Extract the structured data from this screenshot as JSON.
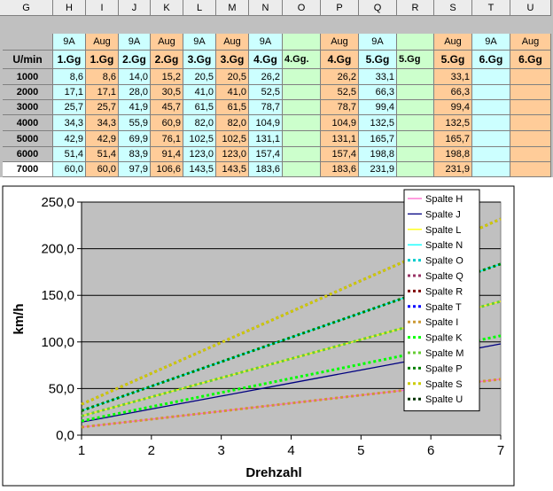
{
  "sheet": {
    "columns": [
      "G",
      "H",
      "I",
      "J",
      "K",
      "L",
      "M",
      "N",
      "O",
      "P",
      "Q",
      "R",
      "S",
      "T",
      "U"
    ],
    "rows": [
      [
        null,
        "9A",
        "Aug",
        "9A",
        "Aug",
        "9A",
        "Aug",
        "9A",
        null,
        "Aug",
        "9A",
        null,
        "Aug",
        "9A",
        "Aug"
      ],
      [
        "U/min",
        "1.Gg",
        "1.Gg",
        "2.Gg",
        "2.Gg",
        "3.Gg",
        "3.Gg",
        "4.Gg",
        "4.Gg.",
        "4.Gg",
        "5.Gg",
        "5.Gg",
        "5.Gg",
        "6.Gg",
        "6.Gg"
      ],
      [
        "1000",
        "8,6",
        "8,6",
        "14,0",
        "15,2",
        "20,5",
        "20,5",
        "26,2",
        null,
        "26,2",
        "33,1",
        null,
        "33,1",
        null,
        null
      ],
      [
        "2000",
        "17,1",
        "17,1",
        "28,0",
        "30,5",
        "41,0",
        "41,0",
        "52,5",
        null,
        "52,5",
        "66,3",
        null,
        "66,3",
        null,
        null
      ],
      [
        "3000",
        "25,7",
        "25,7",
        "41,9",
        "45,7",
        "61,5",
        "61,5",
        "78,7",
        null,
        "78,7",
        "99,4",
        null,
        "99,4",
        null,
        null
      ],
      [
        "4000",
        "34,3",
        "34,3",
        "55,9",
        "60,9",
        "82,0",
        "82,0",
        "104,9",
        null,
        "104,9",
        "132,5",
        null,
        "132,5",
        null,
        null
      ],
      [
        "5000",
        "42,9",
        "42,9",
        "69,9",
        "76,1",
        "102,5",
        "102,5",
        "131,1",
        null,
        "131,1",
        "165,7",
        null,
        "165,7",
        null,
        null
      ],
      [
        "6000",
        "51,4",
        "51,4",
        "83,9",
        "91,4",
        "123,0",
        "123,0",
        "157,4",
        null,
        "157,4",
        "198,8",
        null,
        "198,8",
        null,
        null
      ],
      [
        "7000",
        "60,0",
        "60,0",
        "97,9",
        "106,6",
        "143,5",
        "143,5",
        "183,6",
        null,
        "183,6",
        "231,9",
        null,
        "231,9",
        null,
        null
      ]
    ]
  },
  "chart_data": {
    "type": "line",
    "x_label": "Drehzahl",
    "y_label": "km/h",
    "grid": true,
    "x": [
      1,
      2,
      3,
      4,
      5,
      6,
      7
    ],
    "xlim": [
      1,
      7
    ],
    "xticks": [
      1,
      2,
      3,
      4,
      5,
      6,
      7
    ],
    "ylim": [
      0,
      250
    ],
    "yticks": [
      {
        "value": 0,
        "label": "0,0"
      },
      {
        "value": 50,
        "label": "50,0"
      },
      {
        "value": 100,
        "label": "100,0"
      },
      {
        "value": 150,
        "label": "150,0"
      },
      {
        "value": 200,
        "label": "200,0"
      },
      {
        "value": 250,
        "label": "250,0"
      }
    ],
    "legend": "right",
    "series": [
      {
        "name": "Spalte H",
        "color": "#ff66cc",
        "dash": false,
        "values": [
          8.6,
          17.1,
          25.7,
          34.3,
          42.9,
          51.4,
          60.0
        ]
      },
      {
        "name": "Spalte J",
        "color": "#000080",
        "dash": false,
        "values": [
          14.0,
          28.0,
          41.9,
          55.9,
          69.9,
          83.9,
          97.9
        ]
      },
      {
        "name": "Spalte L",
        "color": "#ffff00",
        "dash": false,
        "values": [
          20.5,
          41.0,
          61.5,
          82.0,
          102.5,
          123.0,
          143.5
        ]
      },
      {
        "name": "Spalte N",
        "color": "#00ffff",
        "dash": false,
        "values": [
          26.2,
          52.5,
          78.7,
          104.9,
          131.1,
          157.4,
          183.6
        ]
      },
      {
        "name": "Spalte O",
        "color": "#00cccc",
        "dash": true,
        "values": [
          null,
          null,
          null,
          null,
          null,
          null,
          null
        ]
      },
      {
        "name": "Spalte Q",
        "color": "#993366",
        "dash": true,
        "values": [
          33.1,
          66.3,
          99.4,
          132.5,
          165.7,
          198.8,
          231.9
        ]
      },
      {
        "name": "Spalte R",
        "color": "#800000",
        "dash": true,
        "values": [
          null,
          null,
          null,
          null,
          null,
          null,
          null
        ]
      },
      {
        "name": "Spalte T",
        "color": "#0000ff",
        "dash": true,
        "values": [
          null,
          null,
          null,
          null,
          null,
          null,
          null
        ]
      },
      {
        "name": "Spalte I",
        "color": "#cc9933",
        "dash": true,
        "values": [
          8.6,
          17.1,
          25.7,
          34.3,
          42.9,
          51.4,
          60.0
        ]
      },
      {
        "name": "Spalte K",
        "color": "#00ff00",
        "dash": true,
        "values": [
          15.2,
          30.5,
          45.7,
          60.9,
          76.1,
          91.4,
          106.6
        ]
      },
      {
        "name": "Spalte M",
        "color": "#66cc33",
        "dash": true,
        "values": [
          20.5,
          41.0,
          61.5,
          82.0,
          102.5,
          123.0,
          143.5
        ]
      },
      {
        "name": "Spalte P",
        "color": "#008000",
        "dash": true,
        "values": [
          26.2,
          52.5,
          78.7,
          104.9,
          131.1,
          157.4,
          183.6
        ]
      },
      {
        "name": "Spalte S",
        "color": "#cccc00",
        "dash": true,
        "values": [
          33.1,
          66.3,
          99.4,
          132.5,
          165.7,
          198.8,
          231.9
        ]
      },
      {
        "name": "Spalte U",
        "color": "#003300",
        "dash": true,
        "values": [
          null,
          null,
          null,
          null,
          null,
          null,
          null
        ]
      }
    ]
  }
}
